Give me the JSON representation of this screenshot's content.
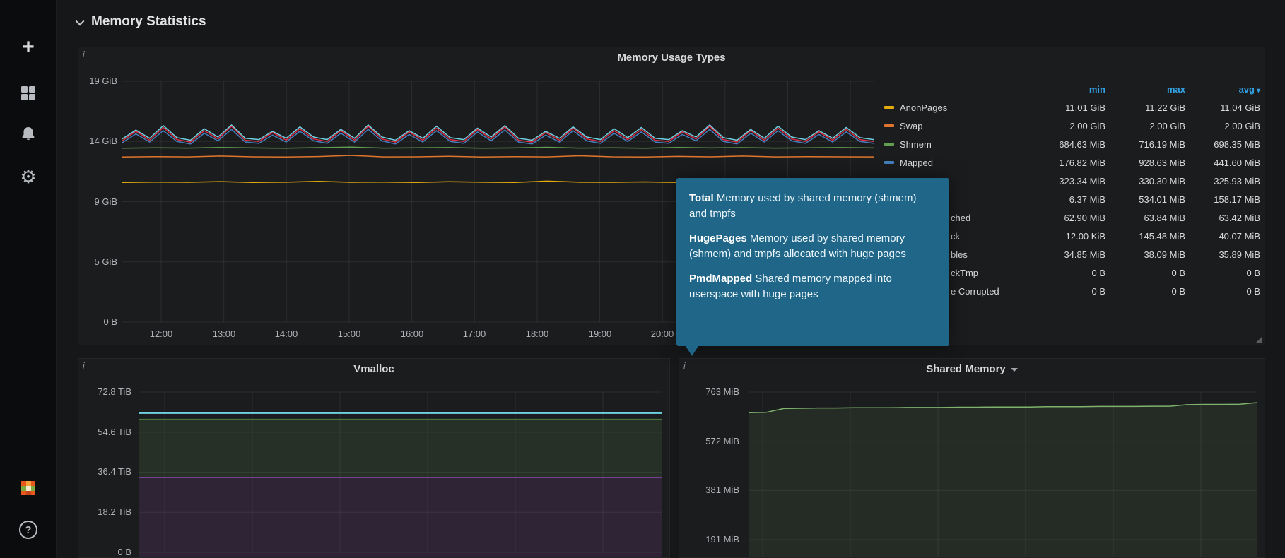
{
  "colors": {
    "accent_blue": "#33a2e5",
    "tooltip_bg": "#1f6688",
    "page_bg": "#161719",
    "panel_bg": "#1b1c1e"
  },
  "icons": {
    "plus": "+",
    "gear": "⚙",
    "help": "?",
    "info": "i",
    "sort_caret": "▾"
  },
  "sidebar": {
    "items": [
      {
        "name": "create",
        "icon": "plus-icon"
      },
      {
        "name": "dashboards",
        "icon": "apps-icon"
      },
      {
        "name": "alerting",
        "icon": "bell-icon"
      },
      {
        "name": "configuration",
        "icon": "gear-icon"
      }
    ],
    "bottom": [
      {
        "name": "profile",
        "icon": "avatar"
      },
      {
        "name": "help",
        "icon": "help-icon"
      }
    ]
  },
  "section": {
    "title": "Memory Statistics"
  },
  "panels": {
    "memory_usage": {
      "title": "Memory Usage Types",
      "y_ticks": [
        "19 GiB",
        "14 GiB",
        "9 GiB",
        "5 GiB",
        "0 B"
      ],
      "x_ticks": [
        "12:00",
        "13:00",
        "14:00",
        "15:00",
        "16:00",
        "17:00",
        "18:00",
        "19:00",
        "20:00"
      ],
      "legend": {
        "headers": {
          "min": "min",
          "max": "max",
          "avg": "avg"
        },
        "rows": [
          {
            "name": "AnonPages",
            "color": "#e5ac0e",
            "min": "11.01 GiB",
            "max": "11.22 GiB",
            "avg": "11.04 GiB"
          },
          {
            "name": "Swap",
            "color": "#e0752d",
            "min": "2.00 GiB",
            "max": "2.00 GiB",
            "avg": "2.00 GiB"
          },
          {
            "name": "Shmem",
            "color": "#629e51",
            "min": "684.63 MiB",
            "max": "716.19 MiB",
            "avg": "698.35 MiB"
          },
          {
            "name": "Mapped",
            "color": "#447ebc",
            "min": "176.82 MiB",
            "max": "928.63 MiB",
            "avg": "441.60 MiB"
          },
          {
            "name": "",
            "min": "323.34 MiB",
            "max": "330.30 MiB",
            "avg": "325.93 MiB"
          },
          {
            "name": "",
            "min": "6.37 MiB",
            "max": "534.01 MiB",
            "avg": "158.17 MiB"
          },
          {
            "name": "ched",
            "min": "62.90 MiB",
            "max": "63.84 MiB",
            "avg": "63.42 MiB"
          },
          {
            "name": "ck",
            "min": "12.00 KiB",
            "max": "145.48 MiB",
            "avg": "40.07 MiB"
          },
          {
            "name": "bles",
            "min": "34.85 MiB",
            "max": "38.09 MiB",
            "avg": "35.89 MiB"
          },
          {
            "name": "ckTmp",
            "min": "0 B",
            "max": "0 B",
            "avg": "0 B"
          },
          {
            "name": "e Corrupted",
            "min": "0 B",
            "max": "0 B",
            "avg": "0 B"
          }
        ]
      }
    },
    "vmalloc": {
      "title": "Vmalloc",
      "y_ticks": [
        "72.8 TiB",
        "54.6 TiB",
        "36.4 TiB",
        "18.2 TiB",
        "0 B"
      ]
    },
    "shared_memory": {
      "title": "Shared Memory",
      "y_ticks": [
        "763 MiB",
        "572 MiB",
        "381 MiB",
        "191 MiB"
      ]
    }
  },
  "tooltip": {
    "paragraphs": [
      {
        "lead": "Total",
        "text": "Memory used by shared memory (shmem) and tmpfs"
      },
      {
        "lead": "HugePages",
        "text": "Memory used by shared memory (shmem) and tmpfs allocated with huge pages"
      },
      {
        "lead": "PmdMapped",
        "text": "Shared memory mapped into userspace with huge pages"
      }
    ]
  },
  "chart_data": [
    {
      "id": "memory-usage-types",
      "type": "line",
      "title": "Memory Usage Types",
      "unit": "GiB",
      "ylim": [
        0,
        19
      ],
      "y_tick_values_gib": [
        0,
        5,
        9,
        14,
        19
      ],
      "x_ticks": [
        "12:00",
        "13:00",
        "14:00",
        "15:00",
        "16:00",
        "17:00",
        "18:00",
        "19:00",
        "20:00"
      ],
      "legend_position": "right-table",
      "grid": true,
      "series": [
        {
          "name": "yellow (AnonPages)",
          "color": "#e5ac0e",
          "width": 1.5,
          "values": [
            11.02,
            11.05,
            11.03,
            11.08,
            11.02,
            11.04,
            11.1,
            11.03,
            11.05,
            11.02,
            11.07,
            11.04,
            11.02,
            11.12,
            11.04,
            11.03,
            11.06,
            11.02,
            11.05,
            11.09,
            11.03,
            11.04,
            11.06,
            11.03
          ]
        },
        {
          "name": "orange (Swap, stacked)",
          "color": "#e0752d",
          "width": 1.5,
          "values": [
            13.02,
            13.05,
            13.03,
            13.1,
            13.04,
            13.02,
            13.06,
            13.15,
            13.03,
            13.04,
            13.08,
            13.02,
            13.05,
            13.03,
            13.12,
            13.04,
            13.02,
            13.07,
            13.04,
            13.1,
            13.03,
            13.05,
            13.04,
            13.03
          ]
        },
        {
          "name": "green (Shmem, stacked)",
          "color": "#629e51",
          "width": 1.5,
          "values": [
            13.72,
            13.75,
            13.73,
            13.78,
            13.74,
            13.72,
            13.76,
            13.8,
            13.73,
            13.75,
            13.77,
            13.72,
            13.74,
            13.79,
            13.73,
            13.75,
            13.72,
            13.78,
            13.74,
            13.76,
            13.73,
            13.75,
            13.77,
            13.74
          ]
        },
        {
          "name": "blue (Mapped, stacked)",
          "color": "#447ebc",
          "width": 1.5,
          "values": [
            14.15,
            14.85,
            14.2,
            15.1,
            14.25,
            14.05,
            14.9,
            14.3,
            15.2,
            14.2,
            14.1,
            14.75,
            14.2,
            15.05,
            14.3,
            14.1,
            14.9,
            14.2,
            15.2,
            14.3,
            14.05,
            14.8,
            14.2,
            15.1,
            14.25,
            14.1,
            15.0,
            14.3,
            15.15,
            14.2,
            14.05,
            14.75,
            14.2,
            15.1,
            14.3,
            14.1,
            14.9,
            14.25,
            15.0,
            14.2,
            14.1,
            14.8,
            14.3,
            15.2,
            14.25,
            14.05,
            14.9,
            14.2,
            15.1,
            14.3,
            14.1,
            14.8,
            14.2,
            15.0,
            14.25,
            14.1
          ]
        },
        {
          "name": "red (stacked)",
          "color": "#e02f44",
          "width": 1.5,
          "values": [
            14.3,
            15.05,
            14.35,
            15.35,
            14.4,
            14.2,
            15.1,
            14.45,
            15.45,
            14.35,
            14.25,
            14.95,
            14.35,
            15.25,
            14.45,
            14.25,
            15.1,
            14.35,
            15.45,
            14.45,
            14.2,
            15.0,
            14.35,
            15.3,
            14.4,
            14.25,
            15.2,
            14.45,
            15.4,
            14.35,
            14.2,
            14.95,
            14.35,
            15.3,
            14.45,
            14.25,
            15.1,
            14.4,
            15.2,
            14.35,
            14.25,
            15.0,
            14.45,
            15.45,
            14.4,
            14.2,
            15.1,
            14.35,
            15.3,
            14.45,
            14.25,
            15.0,
            14.35,
            15.2,
            14.4,
            14.25
          ]
        },
        {
          "name": "light-blue (stacked, top)",
          "color": "#6ed0e0",
          "width": 1.5,
          "values": [
            14.45,
            15.15,
            14.5,
            15.5,
            14.55,
            14.35,
            15.25,
            14.6,
            15.55,
            14.5,
            14.4,
            15.05,
            14.5,
            15.4,
            14.6,
            14.4,
            15.2,
            14.5,
            15.55,
            14.6,
            14.35,
            15.1,
            14.5,
            15.45,
            14.55,
            14.4,
            15.3,
            14.6,
            15.5,
            14.5,
            14.35,
            15.05,
            14.5,
            15.4,
            14.6,
            14.4,
            15.25,
            14.55,
            15.35,
            14.5,
            14.4,
            15.1,
            14.6,
            15.55,
            14.55,
            14.35,
            15.2,
            14.5,
            15.45,
            14.6,
            14.4,
            15.1,
            14.5,
            15.35,
            14.55,
            14.4
          ]
        }
      ]
    },
    {
      "id": "vmalloc",
      "type": "area",
      "title": "Vmalloc",
      "unit": "TiB",
      "ylim": [
        0,
        72.8
      ],
      "y_tick_values_tib": [
        0,
        18.2,
        36.4,
        54.6,
        72.8
      ],
      "grid": true,
      "series": [
        {
          "name": "cyan-line",
          "kind": "line",
          "color": "#6ed0e0",
          "value": 63.2
        },
        {
          "name": "green-band",
          "kind": "band",
          "color": "#629e51",
          "from": 34.0,
          "to": 60.5
        },
        {
          "name": "purple-band",
          "kind": "band",
          "color": "#a352cc",
          "from": 0,
          "to": 34.0
        }
      ]
    },
    {
      "id": "shared-memory",
      "type": "area",
      "title": "Shared Memory",
      "unit": "MiB",
      "ylim": [
        0,
        763
      ],
      "y_tick_values_mib": [
        191,
        381,
        572,
        763
      ],
      "grid": true,
      "series": [
        {
          "name": "green (Shmem)",
          "color": "#7eb26d",
          "width": 1.5,
          "values": [
            683,
            684,
            699,
            700,
            701,
            701,
            702,
            702,
            702,
            703,
            703,
            703,
            704,
            704,
            705,
            705,
            705,
            706,
            706,
            706,
            707,
            707,
            707,
            708,
            708,
            714,
            715,
            715,
            716,
            722
          ]
        }
      ]
    }
  ]
}
